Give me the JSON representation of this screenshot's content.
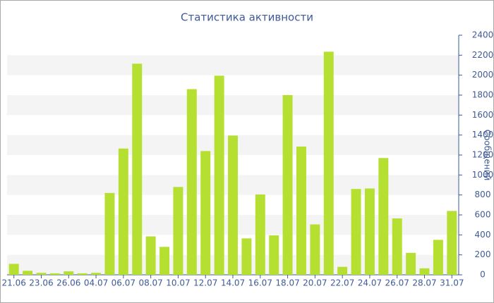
{
  "chart_data": {
    "type": "bar",
    "title": "Статистика активности",
    "y_axis_label": "Сообщений",
    "categories": [
      "21.06",
      null,
      "23.06",
      null,
      "26.06",
      null,
      "04.07",
      null,
      "06.07",
      null,
      "08.07",
      null,
      "10.07",
      null,
      "12.07",
      null,
      "14.07",
      null,
      "16.07",
      null,
      "18.07",
      null,
      "20.07",
      null,
      "22.07",
      null,
      "24.07",
      null,
      "26.07",
      null,
      "28.07",
      null,
      "31.07"
    ],
    "values": [
      110,
      40,
      20,
      15,
      35,
      15,
      20,
      820,
      1265,
      2115,
      385,
      280,
      880,
      1860,
      1240,
      1995,
      1395,
      365,
      805,
      395,
      1800,
      1285,
      505,
      2235,
      80,
      860,
      865,
      1170,
      565,
      220,
      65,
      350,
      640
    ],
    "color": "#b5e032",
    "ylim": [
      0,
      2400
    ],
    "yticks": [
      0,
      200,
      400,
      600,
      800,
      1000,
      1200,
      1400,
      1600,
      1800,
      2000,
      2200,
      2400
    ],
    "grid": true
  }
}
